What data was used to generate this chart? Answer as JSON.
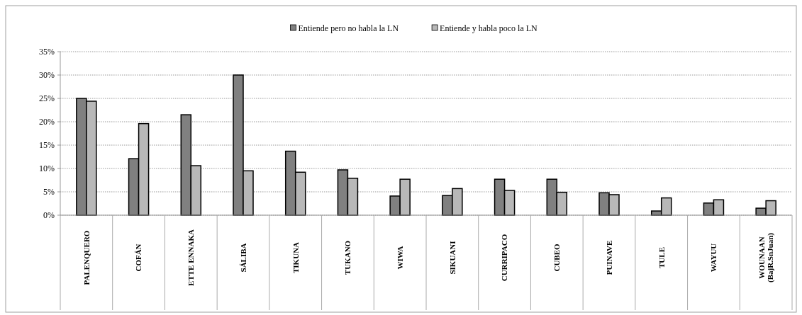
{
  "chart_data": {
    "type": "bar",
    "categories": [
      "PALENQUERO",
      "COFÁN",
      "ETTE ENNAKA",
      "SÁLIBA",
      "TIKUNA",
      "TUKANO",
      "WIWA",
      "SIKUANI",
      "CURRIPACO",
      "CUBEO",
      "PUINAVE",
      "TULE",
      "WAYUU",
      "WOUNAAN\n(BajR.SnJuan)"
    ],
    "series": [
      {
        "name": "Entiende pero no habla la LN",
        "color": "#808080",
        "values": [
          25,
          12.1,
          21.5,
          30,
          13.7,
          9.7,
          4.1,
          4.2,
          7.7,
          7.7,
          4.8,
          0.9,
          2.6,
          1.5
        ]
      },
      {
        "name": "Entiende y habla poco la LN",
        "color": "#b8b8b8",
        "values": [
          24.4,
          19.6,
          10.6,
          9.5,
          9.2,
          7.9,
          7.7,
          5.7,
          5.3,
          4.9,
          4.4,
          3.7,
          3.3,
          3.1
        ]
      }
    ],
    "ylim": [
      0,
      35
    ],
    "yticks": [
      {
        "value": 0,
        "label": "0%"
      },
      {
        "value": 5,
        "label": "5%"
      },
      {
        "value": 10,
        "label": "10%"
      },
      {
        "value": 15,
        "label": "15%"
      },
      {
        "value": 20,
        "label": "20%"
      },
      {
        "value": 25,
        "label": "25%"
      },
      {
        "value": 30,
        "label": "30%"
      },
      {
        "value": 35,
        "label": "35%"
      }
    ],
    "grid": "y",
    "legend": "top"
  }
}
